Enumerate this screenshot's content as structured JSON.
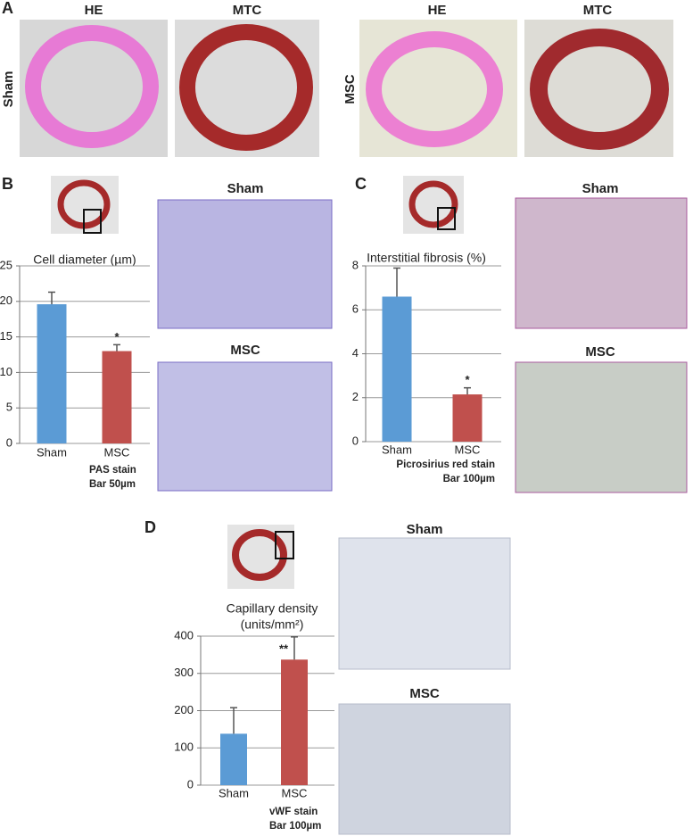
{
  "figure": {
    "panel_labels": [
      "A",
      "B",
      "C",
      "D"
    ],
    "panel_a": {
      "columns": [
        "HE",
        "MTC",
        "HE",
        "MTC"
      ],
      "rows": [
        "Sham",
        "MSC"
      ]
    },
    "panel_b_images": [
      "Sham",
      "MSC"
    ],
    "panel_c_images": [
      "Sham",
      "MSC"
    ],
    "panel_d_images": [
      "Sham",
      "MSC"
    ]
  },
  "chart_data": [
    {
      "type": "bar",
      "title": "Cell diameter (µm)",
      "categories": [
        "Sham",
        "MSC"
      ],
      "values": [
        19.6,
        13
      ],
      "error": [
        1.7,
        0.9
      ],
      "colors": [
        "#5b9bd5",
        "#c0504d"
      ],
      "ylim": [
        0,
        25
      ],
      "yticks": [
        0,
        5,
        10,
        15,
        20,
        25
      ],
      "grid": true,
      "annotations": [
        {
          "text": "*",
          "category": "MSC"
        }
      ],
      "notes": [
        "PAS stain",
        "Bar 50µm"
      ]
    },
    {
      "type": "bar",
      "title": "Interstitial fibrosis (%)",
      "categories": [
        "Sham",
        "MSC"
      ],
      "values": [
        6.6,
        2.15
      ],
      "error": [
        1.3,
        0.3
      ],
      "colors": [
        "#5b9bd5",
        "#c0504d"
      ],
      "ylim": [
        0,
        8
      ],
      "yticks": [
        0,
        2,
        4,
        6,
        8
      ],
      "grid": true,
      "annotations": [
        {
          "text": "*",
          "category": "MSC"
        }
      ],
      "notes": [
        "Picrosirius red stain",
        "Bar 100µm"
      ]
    },
    {
      "type": "bar",
      "title": "Capillary density",
      "subtitle": "(units/mm²)",
      "categories": [
        "Sham",
        "MSC"
      ],
      "values": [
        138,
        337
      ],
      "error": [
        70,
        61
      ],
      "colors": [
        "#5b9bd5",
        "#c0504d"
      ],
      "ylim": [
        0,
        400
      ],
      "yticks": [
        0,
        100,
        200,
        300,
        400
      ],
      "grid": true,
      "annotations": [
        {
          "text": "**",
          "category": "MSC"
        }
      ],
      "notes": [
        "vWF stain",
        "Bar 100µm"
      ]
    }
  ]
}
